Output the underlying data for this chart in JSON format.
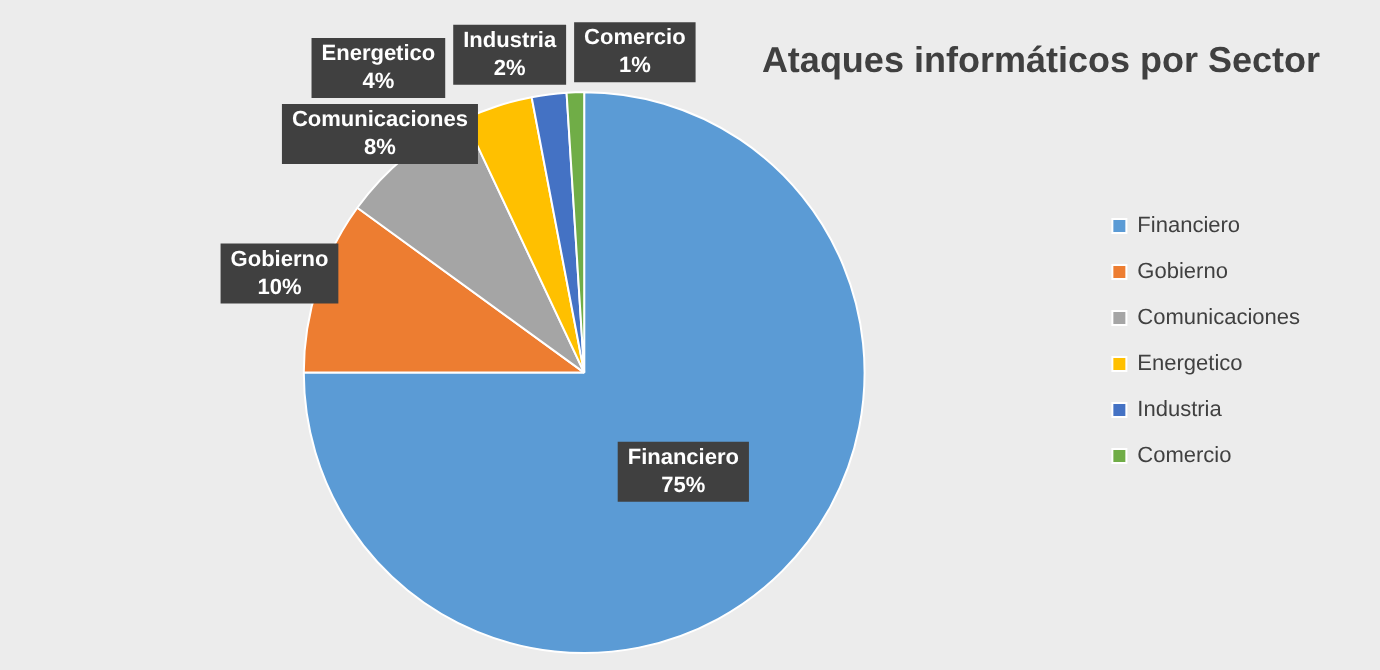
{
  "chart_data": {
    "type": "pie",
    "title": "Ataques informáticos por Sector",
    "categories": [
      "Financiero",
      "Gobierno",
      "Comunicaciones",
      "Energetico",
      "Industria",
      "Comercio"
    ],
    "values": [
      75,
      10,
      8,
      4,
      2,
      1
    ],
    "colors": [
      "#5b9bd5",
      "#ed7d31",
      "#a5a5a5",
      "#ffc000",
      "#4472c4",
      "#70ad47"
    ],
    "value_labels": [
      "75%",
      "10%",
      "8%",
      "4%",
      "2%",
      "1%"
    ],
    "legend": "right"
  }
}
